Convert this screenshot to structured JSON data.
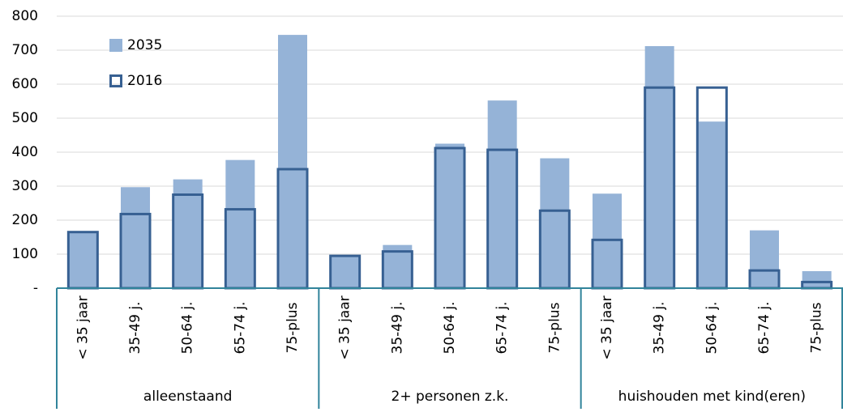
{
  "chart_data": {
    "type": "bar",
    "groups": [
      {
        "name": "alleenstaand",
        "categories": [
          "< 35 jaar",
          "35-49 j.",
          "50-64 j.",
          "65-74 j.",
          "75-plus"
        ]
      },
      {
        "name": "2+ personen z.k.",
        "categories": [
          "< 35 jaar",
          "35-49 j.",
          "50-64 j.",
          "65-74 j.",
          "75-plus"
        ]
      },
      {
        "name": "huishouden met kind(eren)",
        "categories": [
          "< 35 jaar",
          "35-49 j.",
          "50-64 j.",
          "65-74 j.",
          "75-plus"
        ]
      }
    ],
    "series": [
      {
        "name": "2035",
        "color": "#95b3d7",
        "style": "filled",
        "values": [
          163,
          297,
          320,
          377,
          745,
          92,
          127,
          425,
          552,
          382,
          278,
          712,
          490,
          170,
          50
        ]
      },
      {
        "name": "2016",
        "color": "#376092",
        "style": "outline",
        "values": [
          165,
          218,
          275,
          232,
          350,
          95,
          108,
          412,
          407,
          228,
          142,
          590,
          590,
          52,
          18
        ]
      }
    ],
    "ylim": [
      0,
      800
    ],
    "yticks": [
      {
        "value": 0,
        "label": "-"
      },
      100,
      200,
      300,
      400,
      500,
      600,
      700,
      800
    ],
    "grid": true,
    "legend": "top-left"
  }
}
